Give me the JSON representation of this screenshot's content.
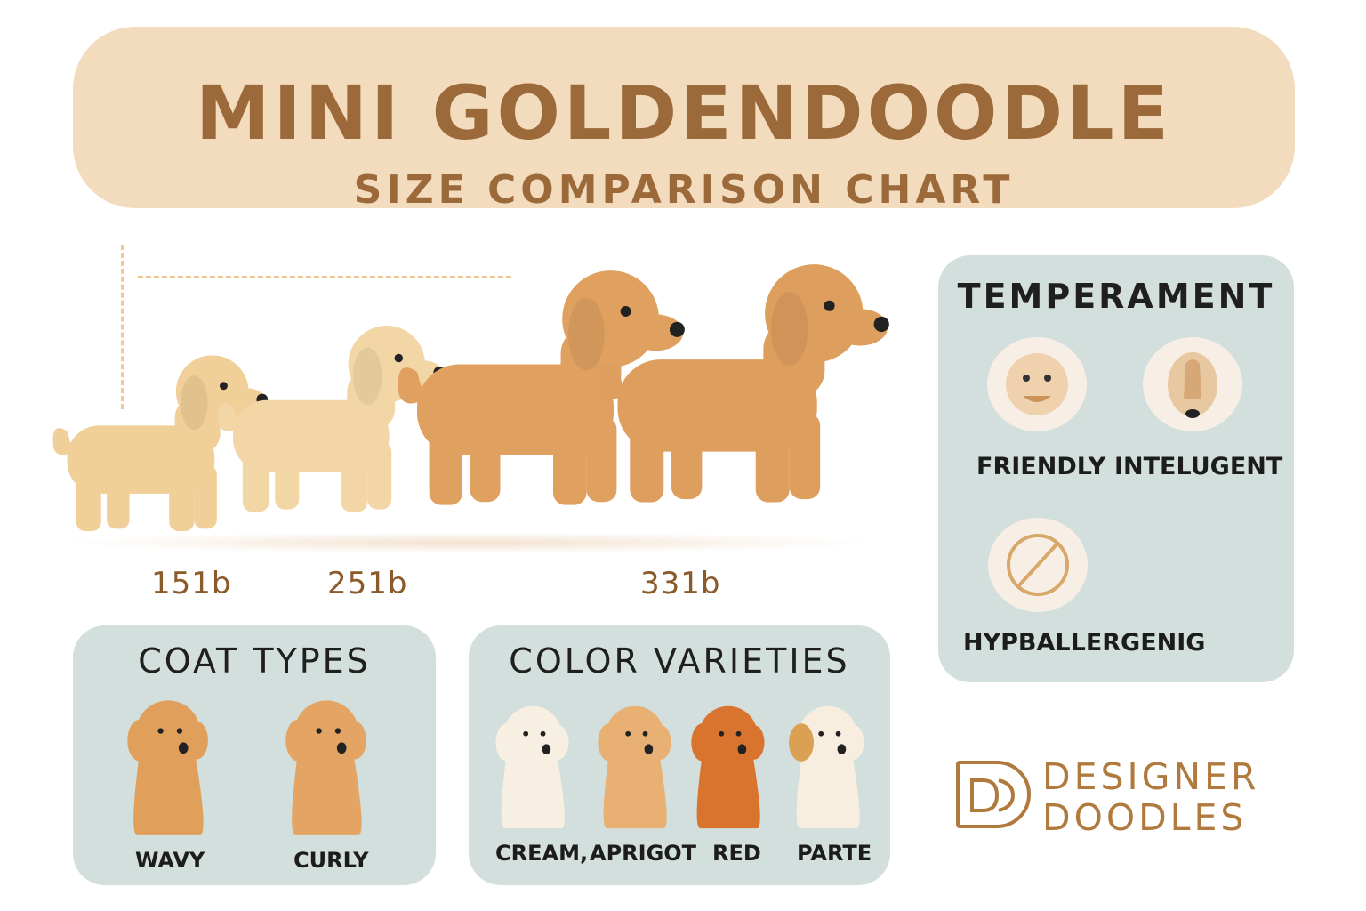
{
  "header": {
    "title": "MINI GOLDENDOODLE",
    "subtitle": "SIZE COMPARISON CHART"
  },
  "size_row": {
    "weights": [
      "151b",
      "251b",
      "331b"
    ],
    "dog_colors": [
      "#f0cf98",
      "#f2d6a6",
      "#dfa060",
      "#dd9e5e"
    ]
  },
  "temperament": {
    "title": "TEMPERAMENT",
    "items": [
      {
        "label": "FRIENDLY",
        "icon": "smiling-face-icon"
      },
      {
        "label": "INTELUGENT",
        "icon": "brain-icon"
      },
      {
        "label": "HYPBALLERGENIG",
        "icon": "no-symbol-icon"
      }
    ]
  },
  "coat_types": {
    "title": "COAT TYPES",
    "items": [
      {
        "label": "WAVY",
        "color": "#e0a05c"
      },
      {
        "label": "CURLY",
        "color": "#e0a05c"
      }
    ]
  },
  "color_varieties": {
    "title": "COLOR VARIETIES",
    "items": [
      {
        "label": "CREAM,",
        "color": "#f6efe2"
      },
      {
        "label": "APRIGOT",
        "color": "#e9b073"
      },
      {
        "label": "RED",
        "color": "#d9742f"
      },
      {
        "label": "PARTE",
        "color": "#f8eee0"
      }
    ]
  },
  "brand": {
    "line1": "DESIGNER",
    "line2": "DOODLES",
    "monogram": "DD",
    "color": "#b07a3e"
  },
  "colors": {
    "header_bg": "#f3dcbd",
    "panel_bg": "#d2dfdd",
    "title_text": "#9c6a3a"
  }
}
